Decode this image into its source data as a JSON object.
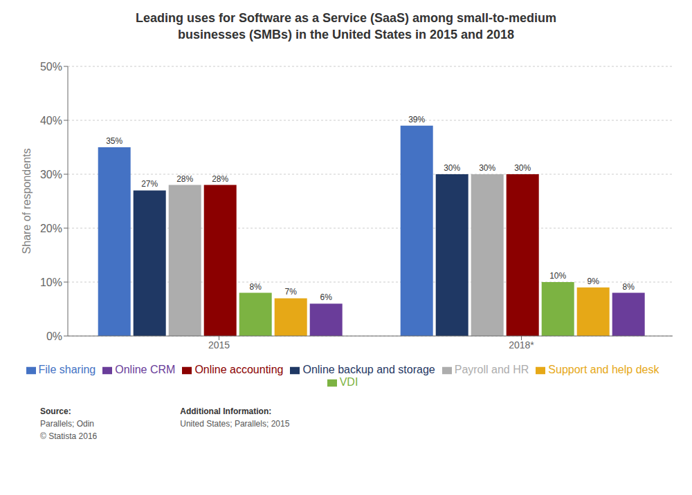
{
  "chart_data": {
    "type": "bar",
    "title": "Leading uses for Software as a Service (SaaS) among small-to-medium\nbusinesses (SMBs) in the United States in 2015 and 2018",
    "ylabel": "Share of respondents",
    "categories": [
      "2015",
      "2018*"
    ],
    "series": [
      {
        "name": "File sharing",
        "color": "#4472C4",
        "values": [
          35,
          39
        ],
        "value_labels": [
          "35%",
          "39%"
        ]
      },
      {
        "name": "Online backup and storage",
        "color": "#1F3864",
        "values": [
          27,
          30
        ],
        "value_labels": [
          "27%",
          "30%"
        ]
      },
      {
        "name": "Payroll and HR",
        "color": "#ADADAD",
        "values": [
          28,
          30
        ],
        "value_labels": [
          "28%",
          "30%"
        ]
      },
      {
        "name": "Online accounting",
        "color": "#8B0000",
        "values": [
          28,
          30
        ],
        "value_labels": [
          "28%",
          "30%"
        ]
      },
      {
        "name": "VDI",
        "color": "#7CB342",
        "values": [
          8,
          10
        ],
        "value_labels": [
          "8%",
          "10%"
        ]
      },
      {
        "name": "Support and help desk",
        "color": "#E6A817",
        "values": [
          7,
          9
        ],
        "value_labels": [
          "7%",
          "9%"
        ]
      },
      {
        "name": "Online CRM",
        "color": "#6A3D9A",
        "values": [
          6,
          8
        ],
        "value_labels": [
          "6%",
          "8%"
        ]
      }
    ],
    "ylim": [
      0,
      50
    ],
    "yticks": [
      {
        "value": 0,
        "label": "0%"
      },
      {
        "value": 10,
        "label": "10%"
      },
      {
        "value": 20,
        "label": "20%"
      },
      {
        "value": 30,
        "label": "30%"
      },
      {
        "value": 40,
        "label": "40%"
      },
      {
        "value": 50,
        "label": "50%"
      }
    ],
    "grid": true,
    "legend": "bottom",
    "data_labels": true,
    "annotations": [
      [
        "Source:",
        "Parallels; Odin",
        "© Statista 2016"
      ],
      [
        "Additional Information:",
        "United States; Parallels; 2015"
      ]
    ]
  }
}
